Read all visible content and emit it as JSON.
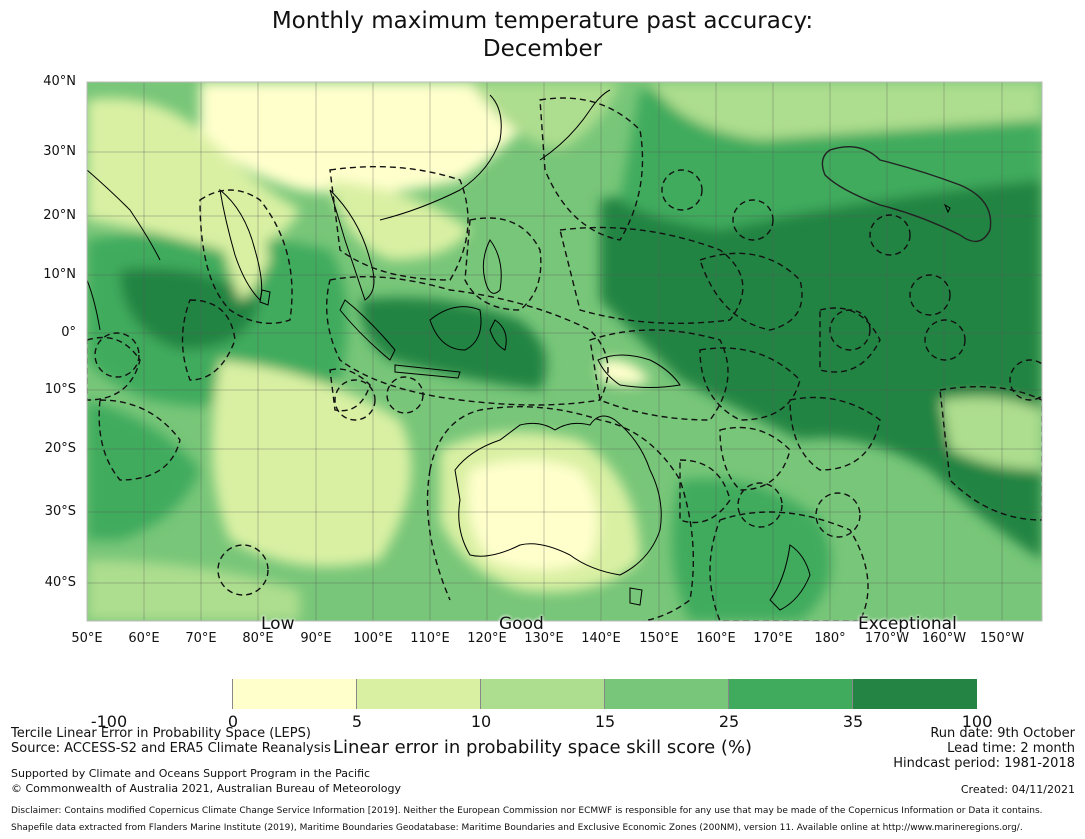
{
  "title": {
    "line1": "Monthly maximum temperature past accuracy:",
    "line2": "December"
  },
  "map": {
    "lat_labels": [
      "40°N",
      "30°N",
      "20°N",
      "10°N",
      "0°",
      "10°S",
      "20°S",
      "30°S",
      "40°S"
    ],
    "lon_labels": [
      "50°E",
      "60°E",
      "70°E",
      "80°E",
      "90°E",
      "100°E",
      "110°E",
      "120°E",
      "130°E",
      "140°E",
      "150°E",
      "160°E",
      "170°E",
      "180°",
      "170°W",
      "160°W",
      "150°W"
    ],
    "skill_labels": {
      "low": "Low",
      "good": "Good",
      "exceptional": "Exceptional"
    },
    "colors": {
      "c0": "#ffffff",
      "c1": "#ffffcc",
      "c2": "#d9f0a3",
      "c3": "#addd8e",
      "c4": "#78c679",
      "c5": "#41ab5d",
      "c6": "#238443"
    }
  },
  "colorbar": {
    "ticks": [
      "-100",
      "0",
      "5",
      "10",
      "15",
      "25",
      "35",
      "100"
    ],
    "label": "Linear error in probability space skill score (%)"
  },
  "footer": {
    "leps": "Tercile Linear Error in Probability Space (LEPS)",
    "source": "Source: ACCESS-S2 and ERA5 Climate Reanalysis",
    "supported": "Supported by Climate and Oceans Support Program in the Pacific",
    "copyright": "© Commonwealth of Australia 2021, Australian Bureau of Meteorology",
    "run_date": "Run date: 9th October",
    "lead_time": "Lead time: 2 month",
    "hindcast": "Hindcast period: 1981-2018",
    "created": "Created: 04/11/2021",
    "disclaimer": "Disclaimer: Contains modified Copernicus Climate Change Service Information [2019]. Neither the European Commission nor ECMWF is responsible for any use that may be made of the Copernicus Information or Data it contains.",
    "shapefile": "Shapefile data extracted from Flanders Marine Institute (2019), Maritime Boundaries Geodatabase: Maritime Boundaries and Exclusive Economic Zones (200NM), version 11. Available online at http://www.marineregions.org/."
  }
}
